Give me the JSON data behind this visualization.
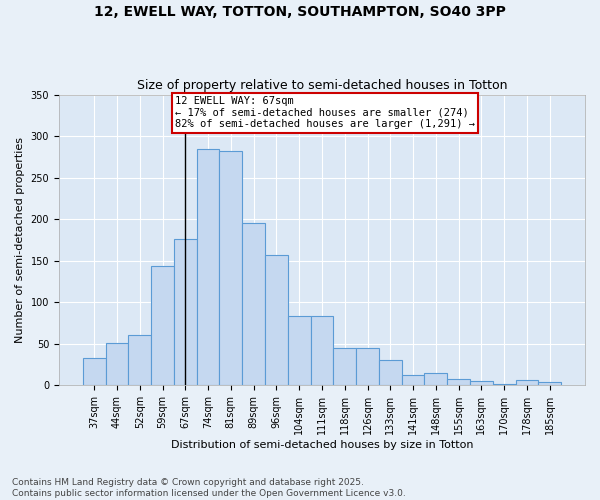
{
  "title1": "12, EWELL WAY, TOTTON, SOUTHAMPTON, SO40 3PP",
  "title2": "Size of property relative to semi-detached houses in Totton",
  "xlabel": "Distribution of semi-detached houses by size in Totton",
  "ylabel": "Number of semi-detached properties",
  "categories": [
    "37sqm",
    "44sqm",
    "52sqm",
    "59sqm",
    "67sqm",
    "74sqm",
    "81sqm",
    "89sqm",
    "96sqm",
    "104sqm",
    "111sqm",
    "118sqm",
    "126sqm",
    "133sqm",
    "141sqm",
    "148sqm",
    "155sqm",
    "163sqm",
    "170sqm",
    "178sqm",
    "185sqm"
  ],
  "values": [
    33,
    51,
    60,
    144,
    176,
    284,
    282,
    196,
    157,
    84,
    84,
    45,
    45,
    30,
    13,
    15,
    8,
    5,
    2,
    6,
    4
  ],
  "bar_color": "#c5d8f0",
  "bar_edge_color": "#5b9bd5",
  "property_bin_index": 4,
  "annotation_text": "12 EWELL WAY: 67sqm\n← 17% of semi-detached houses are smaller (274)\n82% of semi-detached houses are larger (1,291) →",
  "annotation_box_color": "#ffffff",
  "annotation_box_edge_color": "#cc0000",
  "vline_color": "#000000",
  "ylim": [
    0,
    350
  ],
  "footer_text": "Contains HM Land Registry data © Crown copyright and database right 2025.\nContains public sector information licensed under the Open Government Licence v3.0.",
  "background_color": "#e8f0f8",
  "plot_background_color": "#dce8f5",
  "grid_color": "#ffffff",
  "title1_fontsize": 10,
  "title2_fontsize": 9,
  "xlabel_fontsize": 8,
  "ylabel_fontsize": 8,
  "tick_fontsize": 7,
  "annotation_fontsize": 7.5,
  "footer_fontsize": 6.5
}
